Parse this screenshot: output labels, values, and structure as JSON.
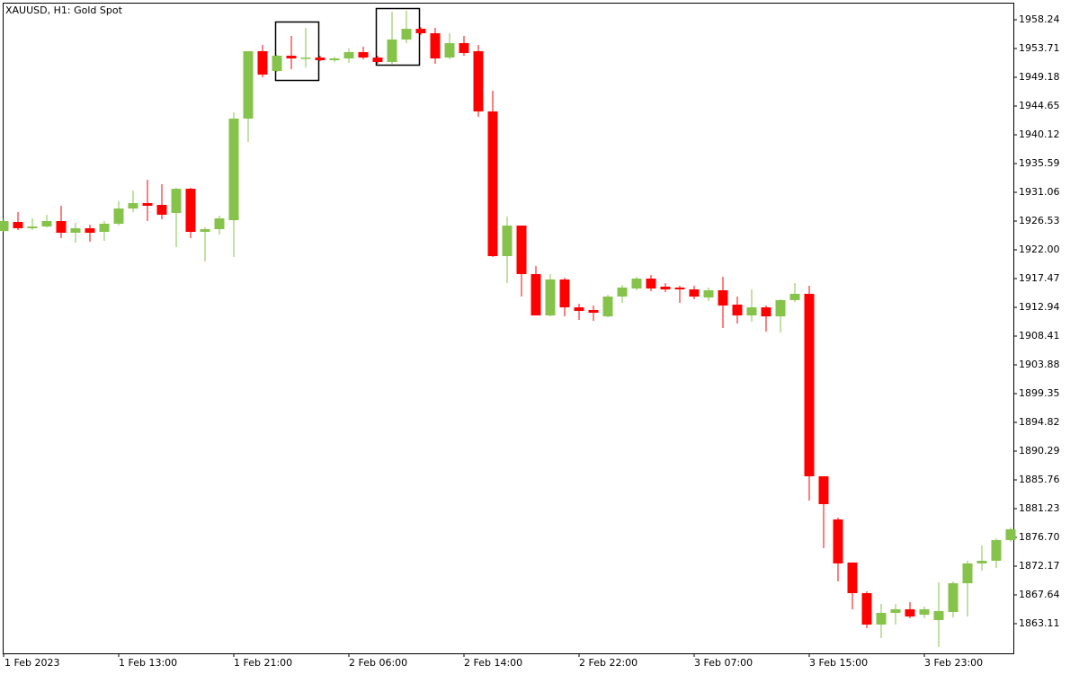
{
  "chart_data": {
    "type": "candlestick",
    "title": "XAUUSD, H1:  Gold Spot",
    "categories": [
      "1 Feb 2023",
      null,
      null,
      null,
      null,
      null,
      null,
      null,
      "1 Feb 13:00",
      null,
      null,
      null,
      null,
      null,
      null,
      null,
      "1 Feb 21:00",
      null,
      null,
      null,
      null,
      null,
      null,
      null,
      "2 Feb 06:00",
      null,
      null,
      null,
      null,
      null,
      null,
      null,
      "2 Feb 14:00",
      null,
      null,
      null,
      null,
      null,
      null,
      null,
      "2 Feb 22:00",
      null,
      null,
      null,
      null,
      null,
      null,
      null,
      "3 Feb 07:00",
      null,
      null,
      null,
      null,
      null,
      null,
      null,
      "3 Feb 15:00",
      null,
      null,
      null,
      null,
      null,
      null,
      null,
      "3 Feb 23:00",
      null,
      null,
      null,
      null,
      null,
      null
    ],
    "open": [
      1924.97,
      1926.39,
      1925.4,
      1925.68,
      1926.53,
      1924.69,
      1925.4,
      1924.83,
      1926.11,
      1928.51,
      1929.36,
      1929.08,
      1927.81,
      1931.62,
      1924.83,
      1925.26,
      1926.67,
      1942.67,
      1953.29,
      1950.17,
      1952.58,
      1952.15,
      1952.29,
      1951.87,
      1952.15,
      1953.14,
      1952.29,
      1951.59,
      1955.13,
      1956.82,
      1956.12,
      1952.29,
      1954.56,
      1953.29,
      1943.8,
      1921.01,
      1925.82,
      1918.18,
      1911.67,
      1917.33,
      1912.94,
      1912.52,
      1911.52,
      1914.64,
      1915.91,
      1917.47,
      1916.2,
      1916.06,
      1915.77,
      1914.5,
      1915.63,
      1913.37,
      1911.67,
      1912.94,
      1911.52,
      1914.08,
      1915.07,
      1886.33,
      1879.53,
      1872.74,
      1867.92,
      1862.97,
      1864.81,
      1865.38,
      1864.52,
      1863.68,
      1864.95,
      1869.48,
      1872.6,
      1873.02,
      1876.28
    ],
    "high": [
      1926.95,
      1927.95,
      1926.95,
      1927.53,
      1928.94,
      1926.25,
      1925.96,
      1926.53,
      1929.64,
      1931.34,
      1933.04,
      1932.34,
      1931.77,
      1931.77,
      1925.54,
      1927.38,
      1943.66,
      1953.29,
      1954.28,
      1952.72,
      1955.69,
      1956.97,
      1952.58,
      1952.44,
      1953.71,
      1953.99,
      1952.58,
      1959.51,
      1959.66,
      1957.11,
      1956.97,
      1956.12,
      1955.69,
      1954.28,
      1947.06,
      1927.24,
      1925.82,
      1919.45,
      1918.18,
      1917.61,
      1913.51,
      1913.23,
      1914.92,
      1916.48,
      1917.75,
      1918.04,
      1916.76,
      1916.34,
      1916.34,
      1916.06,
      1917.75,
      1914.64,
      1915.77,
      1913.23,
      1914.22,
      1916.76,
      1916.34,
      1886.33,
      1879.82,
      1872.74,
      1868.21,
      1866.22,
      1866.22,
      1866.51,
      1865.8,
      1869.63,
      1869.77,
      1873.02,
      1875.42,
      1876.56,
      1878.26
    ],
    "low": [
      1924.83,
      1925.12,
      1925.12,
      1925.54,
      1923.84,
      1923.13,
      1923.28,
      1923.42,
      1925.82,
      1927.95,
      1926.53,
      1926.81,
      1922.43,
      1923.84,
      1920.16,
      1924.41,
      1920.87,
      1938.99,
      1949.18,
      1950.03,
      1950.45,
      1950.74,
      1951.73,
      1951.59,
      1951.45,
      1952.01,
      1951.31,
      1951.16,
      1954.56,
      1955.83,
      1951.31,
      1952.01,
      1952.58,
      1942.95,
      1920.87,
      1916.76,
      1914.64,
      1911.67,
      1911.52,
      1911.52,
      1910.96,
      1910.82,
      1911.38,
      1913.65,
      1915.63,
      1915.49,
      1915.35,
      1913.65,
      1914.22,
      1913.93,
      1909.68,
      1910.39,
      1910.68,
      1909.12,
      1908.98,
      1913.79,
      1882.51,
      1875.0,
      1869.77,
      1865.38,
      1862.4,
      1860.85,
      1862.97,
      1863.96,
      1863.96,
      1859.43,
      1864.1,
      1864.24,
      1871.46,
      1871.89,
      1876.0
    ],
    "close": [
      1926.53,
      1925.4,
      1925.68,
      1926.53,
      1924.69,
      1925.4,
      1924.69,
      1926.11,
      1928.51,
      1929.36,
      1928.94,
      1927.53,
      1931.62,
      1924.83,
      1925.26,
      1926.95,
      1942.67,
      1953.29,
      1949.6,
      1952.58,
      1952.15,
      1952.29,
      1951.87,
      1952.15,
      1953.14,
      1952.29,
      1951.59,
      1955.13,
      1956.82,
      1956.12,
      1952.15,
      1954.56,
      1953.0,
      1943.8,
      1921.01,
      1925.82,
      1918.18,
      1911.67,
      1917.33,
      1912.94,
      1912.38,
      1912.09,
      1914.64,
      1916.06,
      1917.47,
      1915.91,
      1915.77,
      1915.77,
      1914.64,
      1915.63,
      1913.23,
      1911.67,
      1912.94,
      1911.52,
      1914.08,
      1915.07,
      1886.33,
      1881.94,
      1872.6,
      1867.92,
      1862.97,
      1864.81,
      1865.38,
      1864.24,
      1865.38,
      1865.09,
      1869.48,
      1872.6,
      1873.02,
      1876.28,
      1877.98
    ],
    "up_color": "#86c34a",
    "down_color": "#ff0000",
    "ylim": [
      1858.44,
      1960.93
    ],
    "yticks": [
      1958.24,
      1953.71,
      1949.18,
      1944.65,
      1940.12,
      1935.59,
      1931.06,
      1926.53,
      {
        "value": 1922,
        "label": "1922.00"
      },
      1917.47,
      1912.94,
      1908.41,
      1903.88,
      1899.35,
      1894.82,
      1890.29,
      1885.76,
      1881.23,
      {
        "value": 1876.7,
        "label": "1876.70"
      },
      1872.17,
      1867.64,
      1863.11
    ]
  }
}
